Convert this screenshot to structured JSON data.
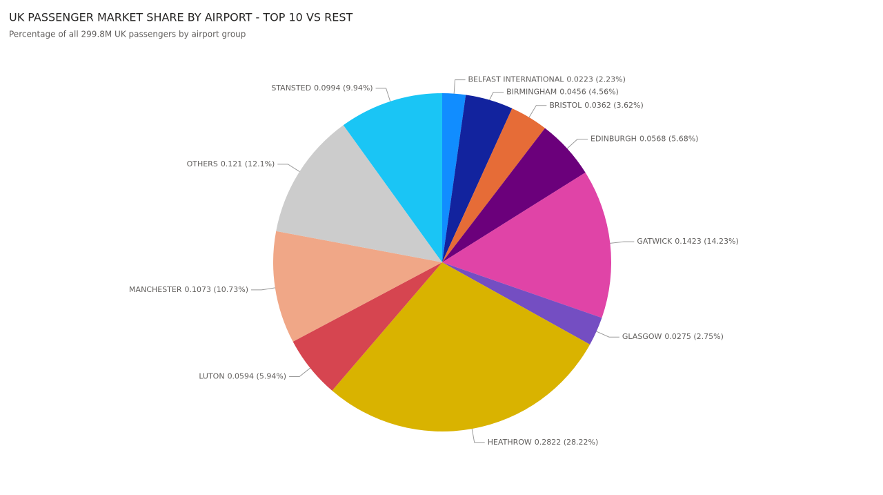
{
  "chart_data": {
    "type": "pie",
    "title": "UK PASSENGER MARKET SHARE BY AIRPORT - TOP 10 VS REST",
    "subtitle": "Percentage of all 299.8M UK passengers by airport group",
    "categories": [
      "BELFAST INTERNATIONAL",
      "BIRMINGHAM",
      "BRISTOL",
      "EDINBURGH",
      "GATWICK",
      "GLASGOW",
      "HEATHROW",
      "LUTON",
      "MANCHESTER",
      "OTHERS",
      "STANSTED"
    ],
    "values": [
      0.0223,
      0.0456,
      0.0362,
      0.0568,
      0.1423,
      0.0275,
      0.2822,
      0.0594,
      0.1073,
      0.121,
      0.0994
    ],
    "value_labels": [
      "0.0223 (2.23%)",
      "0.0456 (4.56%)",
      "0.0362 (3.62%)",
      "0.0568 (5.68%)",
      "0.1423 (14.23%)",
      "0.0275 (2.75%)",
      "0.2822 (28.22%)",
      "0.0594 (5.94%)",
      "0.1073 (10.73%)",
      "0.121 (12.1%)",
      "0.0994 (9.94%)"
    ],
    "colors": [
      "#118DFF",
      "#12239E",
      "#E66C37",
      "#6B007B",
      "#E044A7",
      "#744EC2",
      "#D9B300",
      "#D64550",
      "#F0A787",
      "#CCCCCC",
      "#1AC5F5"
    ]
  }
}
